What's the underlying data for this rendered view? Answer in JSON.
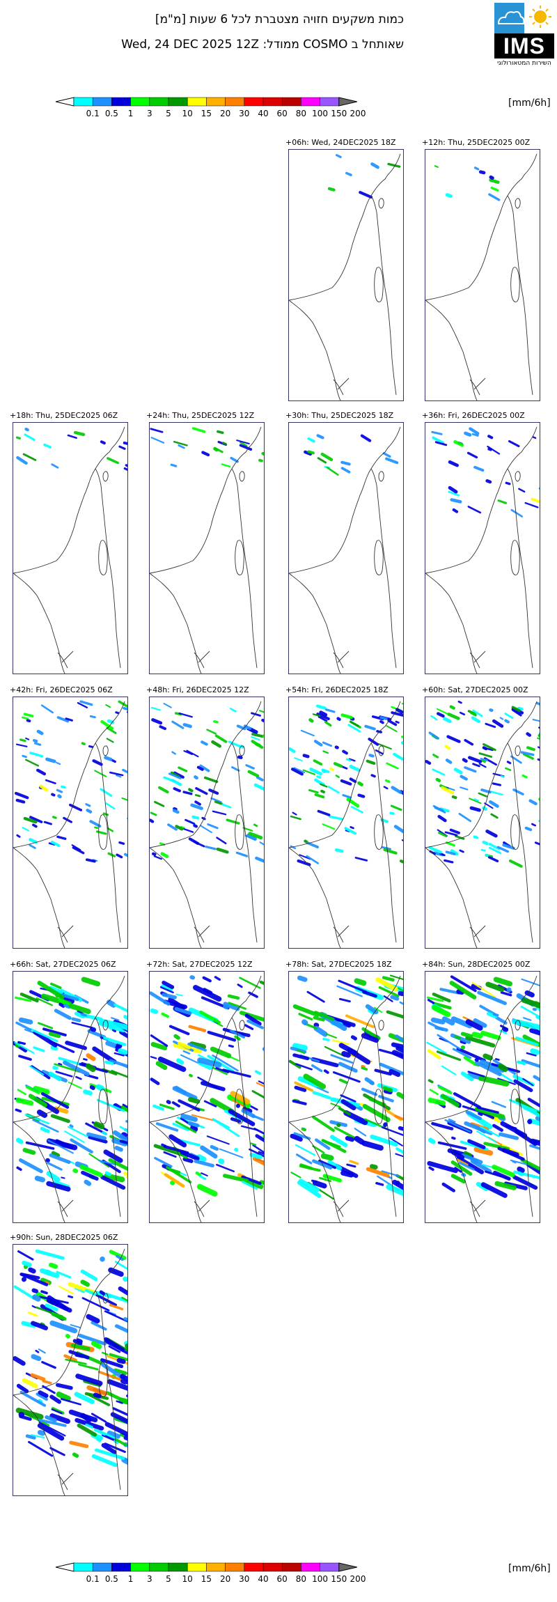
{
  "header": {
    "title_line1": "כמות משקעים חזויה מצטברת לכל 6 שעות [מ\"מ]",
    "title_line2": "Wed, 24 DEC 2025 12Z :ממודל COSMO שאותחל ב",
    "logo_text": "IMS",
    "logo_subtitle": "השירות המטאורולוגי",
    "logo_icons": [
      "cloud-icon",
      "sun-icon"
    ]
  },
  "legend": {
    "unit": "[mm/6h]",
    "thresholds": [
      "0.1",
      "0.5",
      "1",
      "3",
      "5",
      "10",
      "15",
      "20",
      "30",
      "40",
      "60",
      "80",
      "100",
      "150",
      "200"
    ],
    "colors": [
      "#00ffff",
      "#1e90ff",
      "#0000dd",
      "#00ff00",
      "#00cc00",
      "#009900",
      "#ffff00",
      "#ffb000",
      "#ff8000",
      "#ff0000",
      "#dd0000",
      "#bb0000",
      "#ff00ff",
      "#9955ff",
      "#666666"
    ],
    "low_end_color": "#ffffff",
    "high_end_color": "#666666"
  },
  "panels": [
    {
      "label": "+06h: Wed, 24DEC2025 18Z",
      "coverage": 0.01
    },
    {
      "label": "+12h: Thu, 25DEC2025 00Z",
      "coverage": 0.02
    },
    {
      "label": "+18h: Thu, 25DEC2025 06Z",
      "coverage": 0.05
    },
    {
      "label": "+24h: Thu, 25DEC2025 12Z",
      "coverage": 0.06
    },
    {
      "label": "+30h: Thu, 25DEC2025 18Z",
      "coverage": 0.04
    },
    {
      "label": "+36h: Fri, 26DEC2025 00Z",
      "coverage": 0.1
    },
    {
      "label": "+42h: Fri, 26DEC2025 06Z",
      "coverage": 0.3
    },
    {
      "label": "+48h: Fri, 26DEC2025 12Z",
      "coverage": 0.35
    },
    {
      "label": "+54h: Fri, 26DEC2025 18Z",
      "coverage": 0.38
    },
    {
      "label": "+60h: Sat, 27DEC2025 00Z",
      "coverage": 0.45
    },
    {
      "label": "+66h: Sat, 27DEC2025 06Z",
      "coverage": 0.65
    },
    {
      "label": "+72h: Sat, 27DEC2025 12Z",
      "coverage": 0.6
    },
    {
      "label": "+78h: Sat, 27DEC2025 18Z",
      "coverage": 0.6
    },
    {
      "label": "+84h: Sun, 28DEC2025 00Z",
      "coverage": 0.7
    },
    {
      "label": "+90h: Sun, 28DEC2025 06Z",
      "coverage": 0.65
    }
  ]
}
